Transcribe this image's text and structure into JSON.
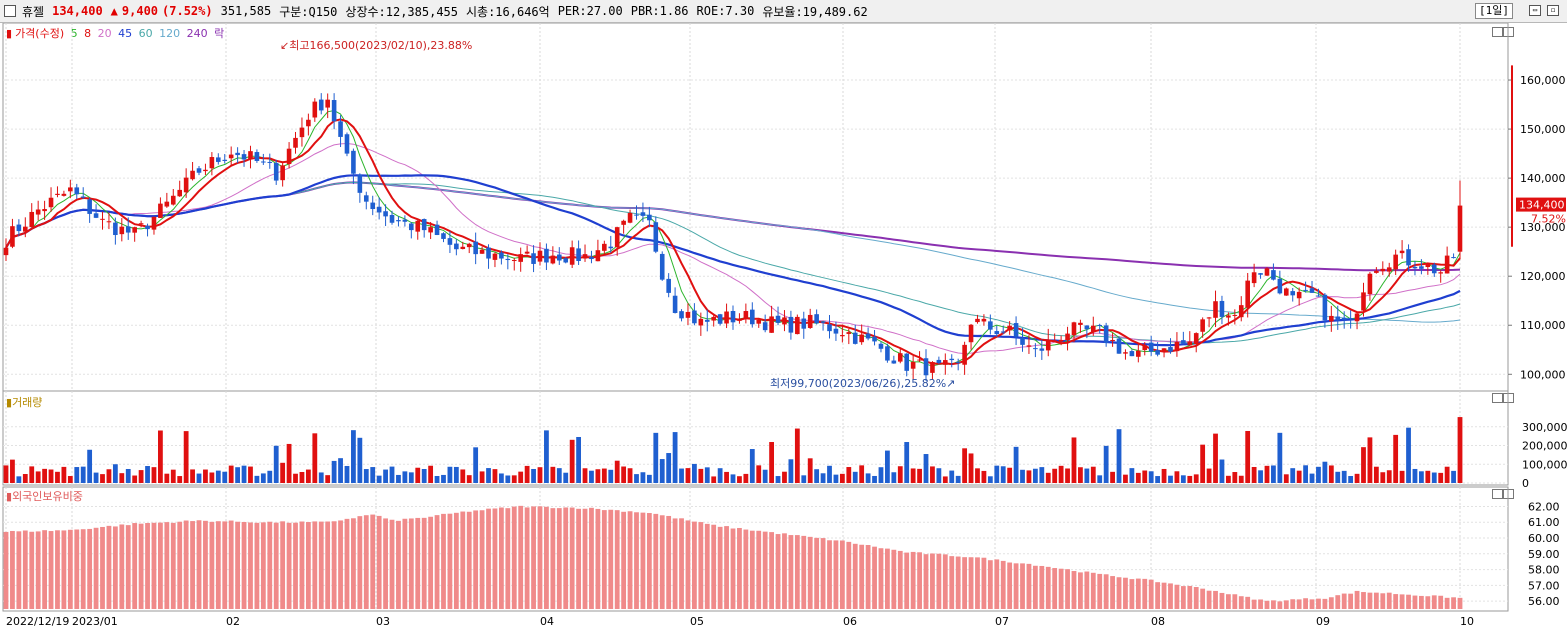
{
  "header": {
    "name": "휴젤",
    "price": "134,400",
    "change_arrow": "▲",
    "change": "9,400",
    "change_pct": "(7.52%)",
    "volume": "351,585",
    "section": "구분:Q150",
    "shares": "상장수:12,385,455",
    "mcap": "시총:16,646억",
    "per": "PER:27.00",
    "pbr": "PBR:1.86",
    "roe": "ROE:7.30",
    "float": "유보율:19,489.62",
    "period": "[1일]"
  },
  "legend": {
    "price": "가격(수정)",
    "ma5": "5",
    "ma8": "8",
    "ma20": "20",
    "ma45": "45",
    "ma60": "60",
    "ma120": "120",
    "ma240": "240",
    "rak": "락",
    "volume": "거래량",
    "foreign": "외국인보유비중"
  },
  "annotations": {
    "high": "최고166,500(2023/02/10),23.88%",
    "low": "최저99,700(2023/06/26),25.82%"
  },
  "colors": {
    "up": "#e01010",
    "down": "#1f5fd0",
    "ma5": "#2cb52c",
    "ma8": "#e01010",
    "ma20": "#d070c8",
    "ma45": "#1f3fd0",
    "ma60": "#4aa8a8",
    "ma120": "#66aacc",
    "ma240": "#8a30b0",
    "foreign": "#f08a8a"
  },
  "chart_data": [
    {
      "type": "candlestick",
      "title": "가격(수정)",
      "ylim": [
        97000,
        170000
      ],
      "yticks": [
        "160,000",
        "150,000",
        "140,000",
        "130,000",
        "120,000",
        "110,000",
        "100,000"
      ],
      "x_labels": [
        "2022/12/19",
        "2023/01",
        "02",
        "03",
        "04",
        "05",
        "06",
        "07",
        "08",
        "09",
        "10"
      ],
      "last_price": "134,400",
      "last_pct": "7.52%",
      "anchors_close": [
        [
          0,
          127500
        ],
        [
          5,
          133500
        ],
        [
          10,
          137500
        ],
        [
          15,
          131000
        ],
        [
          20,
          128500
        ],
        [
          25,
          134500
        ],
        [
          30,
          141500
        ],
        [
          35,
          145500
        ],
        [
          38,
          144000
        ],
        [
          42,
          141000
        ],
        [
          47,
          153000
        ],
        [
          50,
          156500
        ],
        [
          53,
          143500
        ],
        [
          56,
          135500
        ],
        [
          60,
          131500
        ],
        [
          65,
          129500
        ],
        [
          70,
          125500
        ],
        [
          75,
          124500
        ],
        [
          80,
          123500
        ],
        [
          85,
          124500
        ],
        [
          90,
          124000
        ],
        [
          94,
          127000
        ],
        [
          97,
          131500
        ],
        [
          100,
          130500
        ],
        [
          102,
          121000
        ],
        [
          104,
          114000
        ],
        [
          108,
          110500
        ],
        [
          112,
          111500
        ],
        [
          116,
          111500
        ],
        [
          120,
          110000
        ],
        [
          125,
          110500
        ],
        [
          130,
          109000
        ],
        [
          135,
          106000
        ],
        [
          140,
          102000
        ],
        [
          145,
          101000
        ],
        [
          148,
          101500
        ],
        [
          150,
          111000
        ],
        [
          153,
          109500
        ],
        [
          156,
          108500
        ],
        [
          160,
          104500
        ],
        [
          165,
          109000
        ],
        [
          170,
          108500
        ],
        [
          175,
          103500
        ],
        [
          180,
          105500
        ],
        [
          184,
          106500
        ],
        [
          188,
          114000
        ],
        [
          191,
          112000
        ],
        [
          194,
          121500
        ],
        [
          196,
          121000
        ],
        [
          200,
          115000
        ],
        [
          203,
          116000
        ],
        [
          206,
          111000
        ],
        [
          209,
          110000
        ],
        [
          212,
          122000
        ],
        [
          216,
          124000
        ],
        [
          220,
          122500
        ],
        [
          223,
          121000
        ],
        [
          225,
          124000
        ],
        [
          226,
          134400
        ]
      ],
      "volume_ylim": [
        0,
        400000
      ],
      "volume_yticks": [
        "300,000",
        "200,000",
        "100,000",
        "0"
      ],
      "foreign_ylim": [
        55.5,
        62.6
      ],
      "foreign_yticks": [
        "62.00",
        "61.00",
        "60.00",
        "59.00",
        "58.00",
        "57.00",
        "56.00"
      ],
      "foreign_anchors": [
        [
          0,
          60.4
        ],
        [
          10,
          60.5
        ],
        [
          20,
          60.9
        ],
        [
          30,
          61.1
        ],
        [
          40,
          61.0
        ],
        [
          50,
          61.0
        ],
        [
          57,
          61.5
        ],
        [
          60,
          61.1
        ],
        [
          65,
          61.3
        ],
        [
          72,
          61.7
        ],
        [
          80,
          62.0
        ],
        [
          90,
          61.9
        ],
        [
          100,
          61.6
        ],
        [
          110,
          60.8
        ],
        [
          120,
          60.3
        ],
        [
          130,
          59.8
        ],
        [
          140,
          59.1
        ],
        [
          150,
          58.8
        ],
        [
          160,
          58.3
        ],
        [
          170,
          57.7
        ],
        [
          178,
          57.3
        ],
        [
          186,
          56.8
        ],
        [
          192,
          56.3
        ],
        [
          196,
          56.0
        ],
        [
          205,
          56.2
        ],
        [
          210,
          56.6
        ],
        [
          215,
          56.5
        ],
        [
          226,
          56.2
        ]
      ]
    }
  ]
}
